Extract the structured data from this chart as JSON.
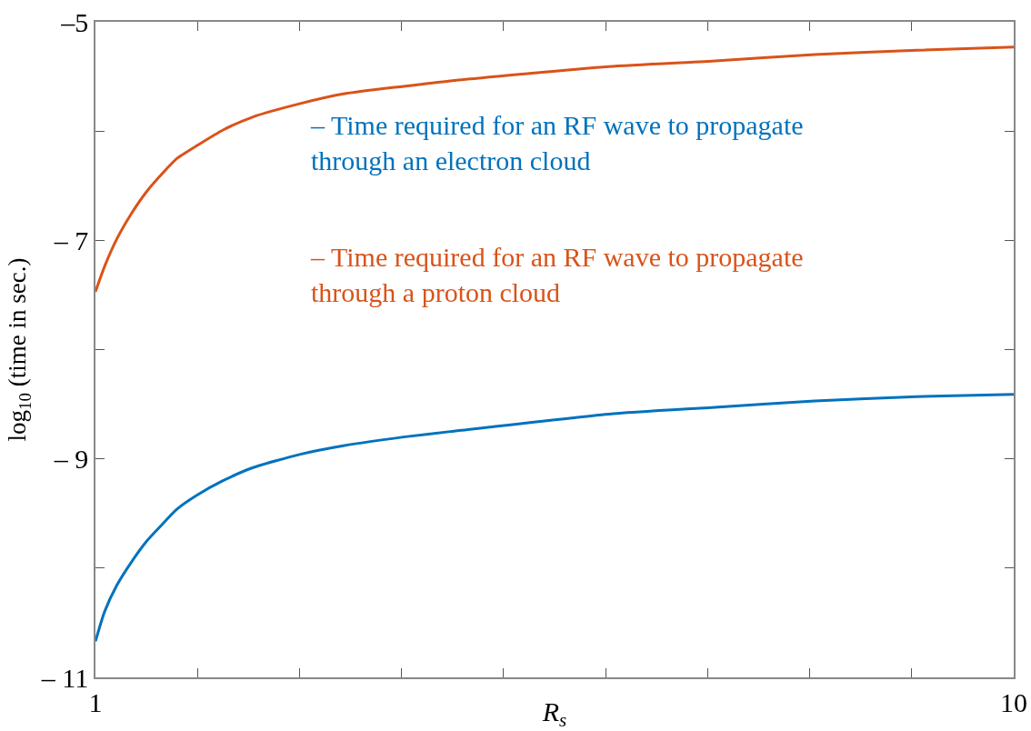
{
  "chart_data": {
    "type": "line",
    "xlabel": "R$_{s}$",
    "ylabel": "log$_{10}$ (time in sec.)",
    "xlim": [
      1,
      10
    ],
    "xticks": [
      1,
      {
        "value": 2,
        "label": null
      },
      {
        "value": 3,
        "label": null
      },
      {
        "value": 4,
        "label": null
      },
      {
        "value": 5,
        "label": null
      },
      {
        "value": 6,
        "label": null
      },
      {
        "value": 7,
        "label": null
      },
      {
        "value": 8,
        "label": null
      },
      {
        "value": 9,
        "label": null
      },
      10
    ],
    "ylim": [
      -11,
      -5
    ],
    "yticks": [
      {
        "value": -11,
        "label": "– 11"
      },
      {
        "value": -10,
        "label": null
      },
      {
        "value": -9,
        "label": "– 9"
      },
      {
        "value": -8,
        "label": null
      },
      {
        "value": -7,
        "label": "– 7"
      },
      {
        "value": -6,
        "label": null
      },
      {
        "value": -5,
        "label": "–5"
      }
    ],
    "grid": false,
    "legend": false,
    "marker": "none",
    "line_style": "solid",
    "x": [
      1,
      1.089,
      1.208,
      1.356,
      1.505,
      1.654,
      1.8,
      2,
      2.25,
      2.545,
      3,
      3.43,
      4.02,
      4.48,
      6.03,
      7.04,
      8.05,
      9.05,
      10
    ],
    "series": [
      {
        "name": "– Time required for an RF wave to propagate\nthrough an electron cloud",
        "color": "#0072bd",
        "values": [
          -10.67,
          -10.4,
          -10.16,
          -9.94,
          -9.75,
          -9.6,
          -9.46,
          -9.33,
          -9.2,
          -9.08,
          -8.96,
          -8.88,
          -8.8,
          -8.75,
          -8.59,
          -8.53,
          -8.47,
          -8.43,
          -8.41
        ]
      },
      {
        "name": "– Time required for an RF wave to propagate\nthrough a proton cloud",
        "color": "#d95319",
        "values": [
          -7.47,
          -7.24,
          -6.99,
          -6.75,
          -6.55,
          -6.39,
          -6.25,
          -6.13,
          -5.99,
          -5.87,
          -5.75,
          -5.66,
          -5.59,
          -5.54,
          -5.41,
          -5.36,
          -5.3,
          -5.26,
          -5.23
        ]
      }
    ]
  }
}
